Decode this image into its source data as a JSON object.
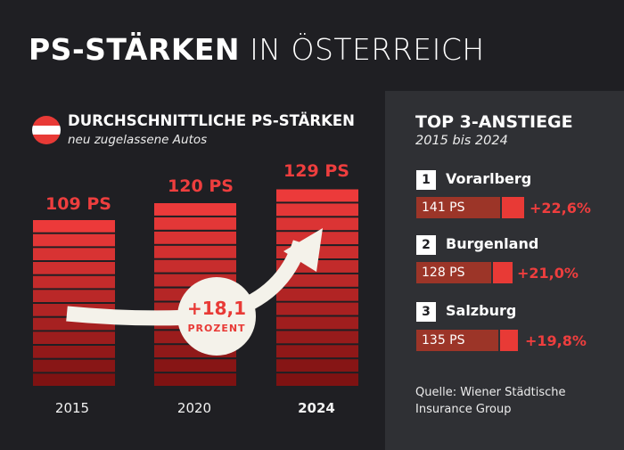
{
  "header": {
    "title_bold": "PS-STÄRKEN",
    "title_light": "IN ÖSTERREICH"
  },
  "colors": {
    "background": "#1f1f23",
    "panel": "#2f3034",
    "accent": "#e83a36",
    "accent_dark": "#9c3528",
    "badge": "#f4f2ea"
  },
  "chart_data": [
    {
      "type": "bar",
      "title": "DURCHSCHNITTLICHE PS-STÄRKEN",
      "subtitle": "neu zugelassene Autos",
      "categories": [
        "2015",
        "2020",
        "2024"
      ],
      "values": [
        109,
        120,
        129
      ],
      "value_labels": [
        "109 PS",
        "120 PS",
        "129 PS"
      ],
      "unit": "PS",
      "highlight": {
        "value": "+18,1",
        "label": "PROZENT"
      }
    },
    {
      "type": "bar",
      "title": "TOP 3-ANSTIEGE",
      "subtitle": "2015 bis 2024",
      "series": [
        {
          "rank": "1",
          "region": "Vorarlberg",
          "ps": 141,
          "ps_label": "141 PS",
          "change": 22.6,
          "change_label": "+22,6%"
        },
        {
          "rank": "2",
          "region": "Burgenland",
          "ps": 128,
          "ps_label": "128 PS",
          "change": 21.0,
          "change_label": "+21,0%"
        },
        {
          "rank": "3",
          "region": "Salzburg",
          "ps": 135,
          "ps_label": "135 PS",
          "change": 19.8,
          "change_label": "+19,8%"
        }
      ]
    }
  ],
  "source": "Quelle: Wiener Städtische Insurance Group",
  "icons": {
    "flag": "austria-flag-icon",
    "arrow": "trend-up-arrow-icon"
  }
}
